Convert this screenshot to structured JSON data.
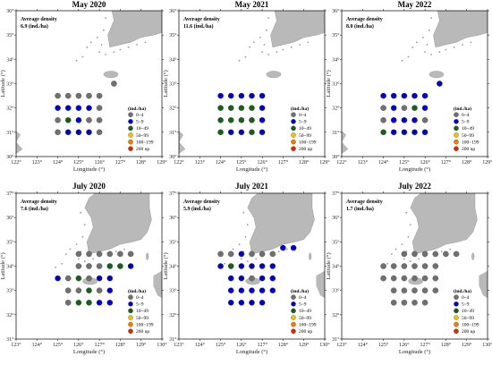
{
  "colors": {
    "land": "#b9b9b9",
    "frame": "#000000",
    "c0": "#707070",
    "c1": "#0000cc",
    "c2": "#1a5e1a",
    "c3": "#f2c200",
    "c4": "#ee7f00",
    "c5": "#d62b00"
  },
  "legend": {
    "title": "(ind./ha)",
    "items": [
      "0~4",
      "5~9",
      "10~49",
      "50~99",
      "100~199",
      "200 up"
    ]
  },
  "avg_label": "Average density",
  "panels": [
    {
      "title": "May 2020",
      "avg": "6.9 (ind./ha)",
      "lat_min": 30,
      "lat_max": 36,
      "lon_min": 122,
      "lon_max": 129,
      "lat_ticks": [
        "30°",
        "31°",
        "32°",
        "33°",
        "34°",
        "35°",
        "36°"
      ],
      "lon_ticks": [
        "122°",
        "123°",
        "124°",
        "125°",
        "126°",
        "127°",
        "128°",
        "129°"
      ],
      "xlabel": "Longitude (°)",
      "ylabel": "Latitude (°)",
      "stations": [
        [
          126.7,
          33.0,
          0
        ],
        [
          124.0,
          32.5,
          0
        ],
        [
          124.5,
          32.5,
          0
        ],
        [
          125.0,
          32.5,
          0
        ],
        [
          125.5,
          32.5,
          0
        ],
        [
          126.0,
          32.5,
          0
        ],
        [
          124.0,
          32.0,
          1
        ],
        [
          124.5,
          32.0,
          1
        ],
        [
          125.0,
          32.0,
          1
        ],
        [
          125.5,
          32.0,
          1
        ],
        [
          126.0,
          32.0,
          0
        ],
        [
          124.0,
          31.5,
          0
        ],
        [
          124.5,
          31.5,
          2
        ],
        [
          125.0,
          31.5,
          1
        ],
        [
          125.5,
          31.5,
          0
        ],
        [
          126.0,
          31.5,
          0
        ],
        [
          124.0,
          31.0,
          0
        ],
        [
          124.5,
          31.0,
          1
        ],
        [
          125.0,
          31.0,
          1
        ],
        [
          125.5,
          31.0,
          1
        ],
        [
          126.0,
          31.0,
          0
        ]
      ]
    },
    {
      "title": "May 2021",
      "avg": "11.6 (ind./ha)",
      "lat_min": 30,
      "lat_max": 36,
      "lon_min": 122,
      "lon_max": 129,
      "lat_ticks": [
        "30°",
        "31°",
        "32°",
        "33°",
        "34°",
        "35°",
        "36°"
      ],
      "lon_ticks": [
        "122°",
        "123°",
        "124°",
        "125°",
        "126°",
        "127°",
        "128°",
        "129°"
      ],
      "xlabel": "Longitude (°)",
      "ylabel": "Latitude (°)",
      "stations": [
        [
          124.0,
          32.5,
          1
        ],
        [
          124.5,
          32.5,
          1
        ],
        [
          125.0,
          32.5,
          1
        ],
        [
          125.5,
          32.5,
          1
        ],
        [
          126.0,
          32.5,
          1
        ],
        [
          124.0,
          32.0,
          2
        ],
        [
          124.5,
          32.0,
          2
        ],
        [
          125.0,
          32.0,
          2
        ],
        [
          125.5,
          32.0,
          2
        ],
        [
          126.0,
          32.0,
          1
        ],
        [
          124.0,
          31.5,
          2
        ],
        [
          124.5,
          31.5,
          2
        ],
        [
          125.0,
          31.5,
          2
        ],
        [
          125.5,
          31.5,
          2
        ],
        [
          126.0,
          31.5,
          1
        ],
        [
          124.0,
          31.0,
          2
        ],
        [
          124.5,
          31.0,
          1
        ],
        [
          125.0,
          31.0,
          1
        ],
        [
          125.5,
          31.0,
          2
        ],
        [
          126.0,
          31.0,
          1
        ]
      ]
    },
    {
      "title": "May 2022",
      "avg": "8.0 (ind./ha)",
      "lat_min": 30,
      "lat_max": 36,
      "lon_min": 122,
      "lon_max": 129,
      "lat_ticks": [
        "30°",
        "31°",
        "32°",
        "33°",
        "34°",
        "35°",
        "36°"
      ],
      "lon_ticks": [
        "122°",
        "123°",
        "124°",
        "125°",
        "126°",
        "127°",
        "128°",
        "129°"
      ],
      "xlabel": "Longitude (°)",
      "ylabel": "Latitude (°)",
      "stations": [
        [
          126.7,
          33.0,
          1
        ],
        [
          124.0,
          32.5,
          1
        ],
        [
          124.5,
          32.5,
          1
        ],
        [
          125.0,
          32.5,
          1
        ],
        [
          125.5,
          32.5,
          1
        ],
        [
          126.0,
          32.5,
          1
        ],
        [
          124.0,
          32.0,
          0
        ],
        [
          124.5,
          32.0,
          1
        ],
        [
          125.0,
          32.0,
          0
        ],
        [
          125.5,
          32.0,
          2
        ],
        [
          126.0,
          32.0,
          1
        ],
        [
          124.0,
          31.5,
          0
        ],
        [
          124.5,
          31.5,
          1
        ],
        [
          125.0,
          31.5,
          1
        ],
        [
          125.5,
          31.5,
          1
        ],
        [
          126.0,
          31.5,
          0
        ],
        [
          124.0,
          31.0,
          2
        ],
        [
          124.5,
          31.0,
          1
        ],
        [
          125.0,
          31.0,
          1
        ],
        [
          125.5,
          31.0,
          1
        ],
        [
          126.0,
          31.0,
          1
        ]
      ]
    },
    {
      "title": "July 2020",
      "avg": "7.6 (ind./ha)",
      "lat_min": 31,
      "lat_max": 37,
      "lon_min": 123,
      "lon_max": 130,
      "lat_ticks": [
        "31°",
        "32°",
        "33°",
        "34°",
        "35°",
        "36°",
        "37°"
      ],
      "lon_ticks": [
        "123°",
        "124°",
        "125°",
        "126°",
        "127°",
        "128°",
        "129°",
        "130°"
      ],
      "xlabel": "Longitude (°)",
      "ylabel": "Latitude (°)",
      "stations": [
        [
          126.0,
          34.5,
          0
        ],
        [
          126.5,
          34.5,
          0
        ],
        [
          127.0,
          34.5,
          0
        ],
        [
          127.5,
          34.5,
          0
        ],
        [
          128.0,
          34.5,
          0
        ],
        [
          128.5,
          34.5,
          0
        ],
        [
          126.0,
          34.0,
          0
        ],
        [
          126.5,
          34.0,
          0
        ],
        [
          127.0,
          34.0,
          0
        ],
        [
          127.5,
          34.0,
          2
        ],
        [
          128.0,
          34.0,
          2
        ],
        [
          128.5,
          34.0,
          1
        ],
        [
          125.0,
          33.5,
          1
        ],
        [
          125.5,
          33.5,
          0
        ],
        [
          126.0,
          33.5,
          2
        ],
        [
          126.5,
          33.5,
          0
        ],
        [
          127.0,
          33.5,
          1
        ],
        [
          127.5,
          33.5,
          1
        ],
        [
          125.5,
          33.0,
          0
        ],
        [
          126.0,
          33.0,
          0
        ],
        [
          126.5,
          33.0,
          2
        ],
        [
          127.0,
          33.0,
          0
        ],
        [
          127.5,
          33.0,
          1
        ],
        [
          125.5,
          32.5,
          0
        ],
        [
          126.0,
          32.5,
          2
        ],
        [
          126.5,
          32.5,
          2
        ],
        [
          127.0,
          32.5,
          1
        ],
        [
          127.5,
          32.5,
          1
        ]
      ]
    },
    {
      "title": "July 2021",
      "avg": "5.9 (ind./ha)",
      "lat_min": 31,
      "lat_max": 37,
      "lon_min": 123,
      "lon_max": 130,
      "lat_ticks": [
        "31°",
        "32°",
        "33°",
        "34°",
        "35°",
        "36°",
        "37°"
      ],
      "lon_ticks": [
        "123°",
        "124°",
        "125°",
        "126°",
        "127°",
        "128°",
        "129°",
        "130°"
      ],
      "xlabel": "Longitude (°)",
      "ylabel": "Latitude (°)",
      "stations": [
        [
          128.0,
          34.75,
          1
        ],
        [
          128.5,
          34.75,
          1
        ],
        [
          125.0,
          34.5,
          0
        ],
        [
          125.5,
          34.5,
          0
        ],
        [
          126.0,
          34.5,
          1
        ],
        [
          126.5,
          34.5,
          0
        ],
        [
          127.0,
          34.5,
          0
        ],
        [
          127.5,
          34.5,
          0
        ],
        [
          125.0,
          34.0,
          1
        ],
        [
          125.5,
          34.0,
          2
        ],
        [
          126.0,
          34.0,
          1
        ],
        [
          126.5,
          34.0,
          1
        ],
        [
          127.0,
          34.0,
          1
        ],
        [
          127.5,
          34.0,
          1
        ],
        [
          125.5,
          33.5,
          1
        ],
        [
          126.0,
          33.5,
          1
        ],
        [
          126.5,
          33.5,
          0
        ],
        [
          127.0,
          33.5,
          1
        ],
        [
          127.5,
          33.5,
          1
        ],
        [
          125.5,
          33.0,
          1
        ],
        [
          126.0,
          33.0,
          1
        ],
        [
          126.5,
          33.0,
          1
        ],
        [
          127.0,
          33.0,
          1
        ],
        [
          127.5,
          33.0,
          1
        ],
        [
          125.5,
          32.5,
          1
        ],
        [
          126.0,
          32.5,
          1
        ],
        [
          126.5,
          32.5,
          1
        ],
        [
          127.0,
          32.5,
          1
        ]
      ]
    },
    {
      "title": "July 2022",
      "avg": "1.7 (ind./ha)",
      "lat_min": 31,
      "lat_max": 37,
      "lon_min": 123,
      "lon_max": 130,
      "lat_ticks": [
        "31°",
        "32°",
        "33°",
        "34°",
        "35°",
        "36°",
        "37°"
      ],
      "lon_ticks": [
        "123°",
        "124°",
        "125°",
        "126°",
        "127°",
        "128°",
        "129°",
        "130°"
      ],
      "xlabel": "Longitude (°)",
      "ylabel": "Latitude (°)",
      "stations": [
        [
          126.0,
          34.5,
          0
        ],
        [
          126.5,
          34.5,
          0
        ],
        [
          127.0,
          34.5,
          0
        ],
        [
          127.5,
          34.5,
          0
        ],
        [
          128.0,
          34.5,
          0
        ],
        [
          128.5,
          34.5,
          0
        ],
        [
          125.0,
          34.0,
          0
        ],
        [
          125.5,
          34.0,
          0
        ],
        [
          126.0,
          34.0,
          0
        ],
        [
          126.5,
          34.0,
          0
        ],
        [
          127.0,
          34.0,
          0
        ],
        [
          127.5,
          34.0,
          0
        ],
        [
          125.0,
          33.5,
          0
        ],
        [
          125.5,
          33.5,
          0
        ],
        [
          126.0,
          33.5,
          0
        ],
        [
          126.5,
          33.5,
          0
        ],
        [
          127.0,
          33.5,
          0
        ],
        [
          127.5,
          33.5,
          0
        ],
        [
          125.5,
          33.0,
          0
        ],
        [
          126.0,
          33.0,
          0
        ],
        [
          126.5,
          33.0,
          0
        ],
        [
          127.0,
          33.0,
          0
        ],
        [
          127.5,
          33.0,
          0
        ],
        [
          125.5,
          32.5,
          0
        ],
        [
          126.0,
          32.5,
          0
        ],
        [
          126.5,
          32.5,
          0
        ],
        [
          127.0,
          32.5,
          0
        ]
      ]
    }
  ]
}
